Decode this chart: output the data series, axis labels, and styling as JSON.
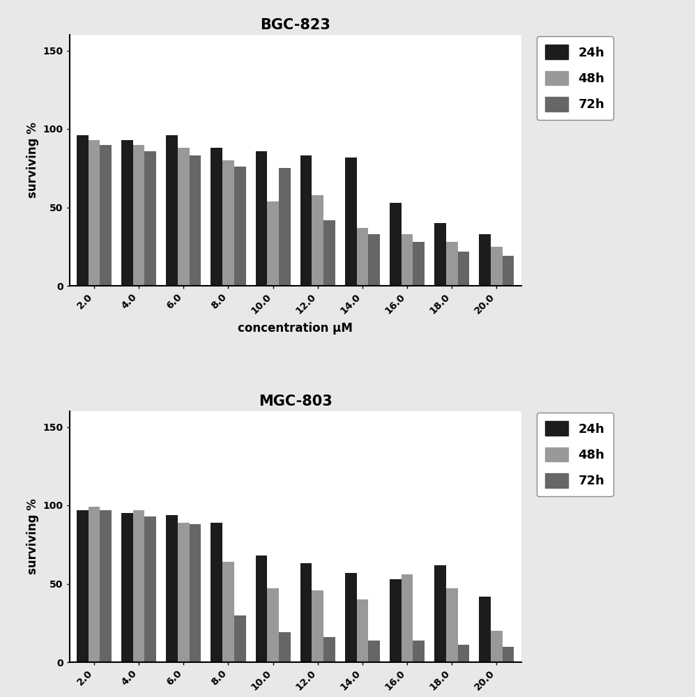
{
  "bgc_title": "BGC-823",
  "mgc_title": "MGC-803",
  "xlabel": "concentration μM",
  "ylabel": "surviving %",
  "categories": [
    "2.0",
    "4.0",
    "6.0",
    "8.0",
    "10.0",
    "12.0",
    "14.0",
    "16.0",
    "18.0",
    "20.0"
  ],
  "bgc_24h": [
    96,
    93,
    96,
    88,
    86,
    83,
    82,
    53,
    40,
    33
  ],
  "bgc_48h": [
    93,
    90,
    88,
    80,
    54,
    58,
    37,
    33,
    28,
    25
  ],
  "bgc_72h": [
    90,
    86,
    83,
    76,
    75,
    42,
    33,
    28,
    22,
    19
  ],
  "mgc_24h": [
    97,
    95,
    94,
    89,
    68,
    63,
    57,
    53,
    62,
    42
  ],
  "mgc_48h": [
    99,
    97,
    89,
    64,
    47,
    46,
    40,
    56,
    47,
    20
  ],
  "mgc_72h": [
    97,
    93,
    88,
    30,
    19,
    16,
    14,
    14,
    11,
    10
  ],
  "color_24h": "#1c1c1c",
  "color_48h": "#999999",
  "color_72h": "#666666",
  "ylim": [
    0,
    160
  ],
  "yticks": [
    0,
    50,
    100,
    150
  ],
  "bar_width": 0.26,
  "bg_color": "#ffffff",
  "fig_bg_color": "#e8e8e8",
  "title_fontsize": 15,
  "label_fontsize": 12,
  "tick_fontsize": 10,
  "legend_fontsize": 13
}
